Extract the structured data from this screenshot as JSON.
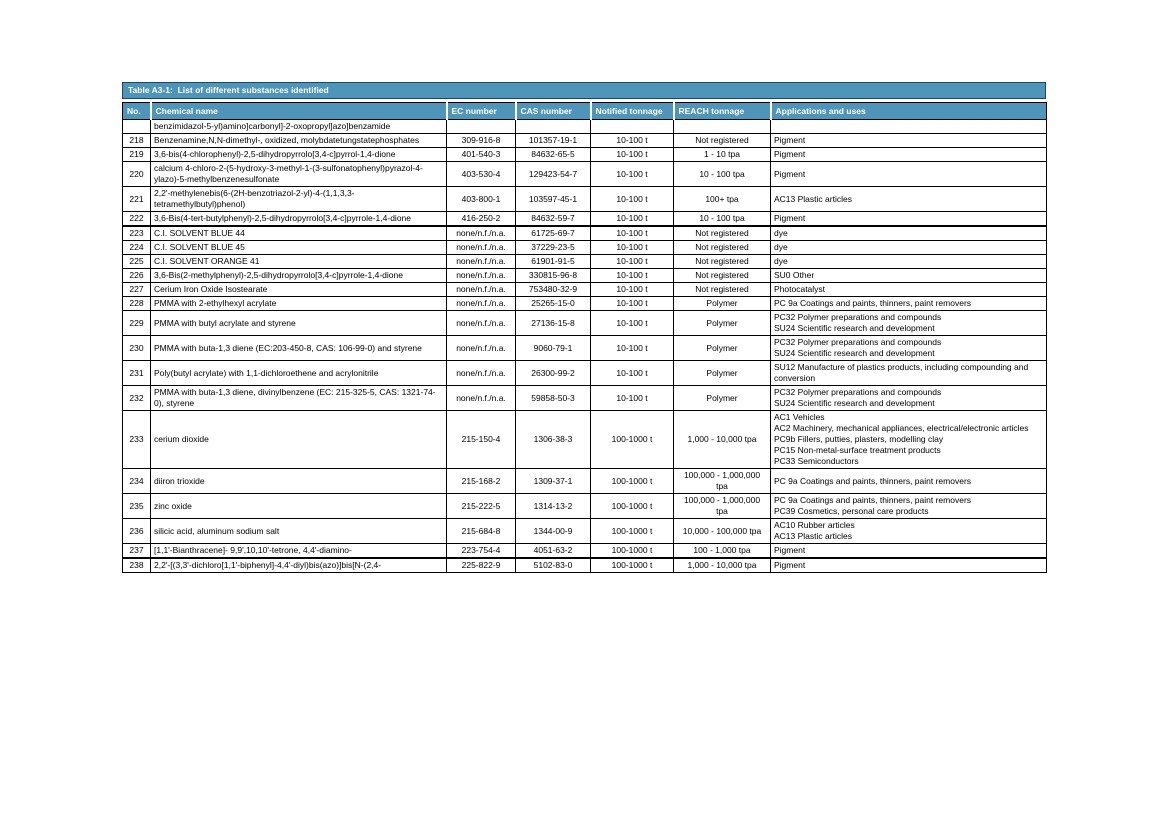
{
  "table": {
    "title": "Table A3-1:  List of different substances identified",
    "header_bg": "#4e95b9",
    "header_text_color": "#ffffff",
    "columns": [
      "No.",
      "Chemical name",
      "EC number",
      "CAS number",
      "Notified tonnage",
      "REACH tonnage",
      "Applications and uses"
    ],
    "rows": [
      {
        "no": "",
        "name": "benzimidazol-5-yl)amino]carbonyl]-2-oxopropyl]azo]benzamide",
        "ec": "",
        "cas": "",
        "notified": "",
        "reach": "",
        "apps": []
      },
      {
        "no": "218",
        "name": "Benzenamine,N,N-dimethyl-, oxidized, molybdatetungstatephosphates",
        "ec": "309-916-8",
        "cas": "101357-19-1",
        "notified": "10-100 t",
        "reach": "Not registered",
        "apps": [
          "Pigment"
        ]
      },
      {
        "no": "219",
        "name": "3,6-bis(4-chlorophenyl)-2,5-dihydropyrrolo[3,4-c]pyrrol-1,4-dione",
        "ec": "401-540-3",
        "cas": "84632-65-5",
        "notified": "10-100 t",
        "reach": "1 - 10 tpa",
        "apps": [
          "Pigment"
        ]
      },
      {
        "no": "220",
        "name": "calcium 4-chloro-2-(5-hydroxy-3-methyl-1-(3-sulfonatophenyl)pyrazol-4-ylazo)-5-methylbenzenesulfonate",
        "ec": "403-530-4",
        "cas": "129423-54-7",
        "notified": "10-100 t",
        "reach": "10 - 100 tpa",
        "apps": [
          "Pigment"
        ]
      },
      {
        "no": "221",
        "name": "2,2'-methylenebis(6-(2H-benzotriazol-2-yl)-4-(1,1,3,3-tetramethylbutyl)phenol)",
        "ec": "403-800-1",
        "cas": "103597-45-1",
        "notified": "10-100 t",
        "reach": "100+ tpa",
        "apps": [
          "AC13 Plastic articles"
        ]
      },
      {
        "no": "222",
        "name": "3,6-Bis(4-tert-butylphenyl)-2,5-dihydropyrrolo[3,4-c]pyrrole-1,4-dione",
        "ec": "416-250-2",
        "cas": "84632-59-7",
        "notified": "10-100 t",
        "reach": "10 - 100 tpa",
        "apps": [
          "Pigment"
        ]
      },
      {
        "no": "223",
        "thick_top": true,
        "name": "C.I. SOLVENT BLUE 44",
        "ec": "none/n.f./n.a.",
        "cas": "61725-69-7",
        "notified": "10-100 t",
        "reach": "Not registered",
        "apps": [
          "dye"
        ]
      },
      {
        "no": "224",
        "name": "C.I. SOLVENT BLUE 45",
        "ec": "none/n.f./n.a.",
        "cas": "37229-23-5",
        "notified": "10-100 t",
        "reach": "Not registered",
        "apps": [
          "dye"
        ]
      },
      {
        "no": "225",
        "name": "C.I. SOLVENT ORANGE 41",
        "ec": "none/n.f./n.a.",
        "cas": "61901-91-5",
        "notified": "10-100 t",
        "reach": "Not registered",
        "apps": [
          "dye"
        ]
      },
      {
        "no": "226",
        "name": "3,6-Bis(2-methylphenyl)-2,5-dihydropyrrolo[3,4-c]pyrrole-1,4-dione",
        "ec": "none/n.f./n.a.",
        "cas": "330815-96-8",
        "notified": "10-100 t",
        "reach": "Not registered",
        "apps": [
          "SU0 Other"
        ]
      },
      {
        "no": "227",
        "name": "Cerium Iron Oxide Isostearate",
        "ec": "none/n.f./n.a.",
        "cas": "753480-32-9",
        "notified": "10-100 t",
        "reach": "Not registered",
        "apps": [
          "Photocatalyst"
        ]
      },
      {
        "no": "228",
        "name": "PMMA with 2-ethylhexyl acrylate",
        "ec": "none/n.f./n.a.",
        "cas": "25265-15-0",
        "notified": "10-100 t",
        "reach": "Polymer",
        "apps": [
          "PC 9a Coatings and paints, thinners, paint removers"
        ]
      },
      {
        "no": "229",
        "name": "PMMA with butyl acrylate and styrene",
        "ec": "none/n.f./n.a.",
        "cas": "27136-15-8",
        "notified": "10-100 t",
        "reach": "Polymer",
        "apps": [
          "PC32 Polymer preparations and compounds",
          "SU24 Scientific research and development"
        ]
      },
      {
        "no": "230",
        "name": "PMMA with buta-1,3 diene (EC:203-450-8, CAS: 106-99-0) and styrene",
        "ec": "none/n.f./n.a.",
        "cas": "9060-79-1",
        "notified": "10-100 t",
        "reach": "Polymer",
        "apps": [
          "PC32 Polymer preparations and compounds",
          "SU24 Scientific research and development"
        ]
      },
      {
        "no": "231",
        "name": "Poly(butyl acrylate) with 1,1-dichloroethene and acrylonitrile",
        "ec": "none/n.f./n.a.",
        "cas": "26300-99-2",
        "notified": "10-100 t",
        "reach": "Polymer",
        "apps": [
          "SU12 Manufacture of plastics products, including compounding and conversion"
        ]
      },
      {
        "no": "232",
        "name": "PMMA with buta-1,3 diene, divinylbenzene (EC: 215-325-5, CAS: 1321-74-0), styrene",
        "ec": "none/n.f./n.a.",
        "cas": "59858-50-3",
        "notified": "10-100 t",
        "reach": "Polymer",
        "apps": [
          "PC32 Polymer preparations and compounds",
          "SU24 Scientific research and development"
        ]
      },
      {
        "no": "233",
        "name": "cerium dioxide",
        "ec": "215-150-4",
        "cas": "1306-38-3",
        "notified": "100-1000 t",
        "reach": "1,000 - 10,000 tpa",
        "apps": [
          "AC1 Vehicles",
          "AC2 Machinery, mechanical appliances, electrical/electronic articles",
          "PC9b Fillers, putties, plasters, modelling clay",
          "PC15 Non-metal-surface treatment products",
          "PC33 Semiconductors"
        ]
      },
      {
        "no": "234",
        "name": "diiron trioxide",
        "ec": "215-168-2",
        "cas": "1309-37-1",
        "notified": "100-1000 t",
        "reach": "100,000 - 1,000,000 tpa",
        "apps": [
          "PC 9a Coatings and paints, thinners, paint removers"
        ]
      },
      {
        "no": "235",
        "name": "zinc oxide",
        "ec": "215-222-5",
        "cas": "1314-13-2",
        "notified": "100-1000 t",
        "reach": "100,000 - 1,000,000 tpa",
        "apps": [
          "PC 9a Coatings and paints, thinners, paint removers",
          "PC39 Cosmetics, personal care products"
        ]
      },
      {
        "no": "236",
        "name": "silicic acid, aluminum sodium salt",
        "ec": "215-684-8",
        "cas": "1344-00-9",
        "notified": "100-1000 t",
        "reach": "10,000 - 100,000 tpa",
        "apps": [
          "AC10 Rubber articles",
          "AC13 Plastic articles"
        ]
      },
      {
        "no": "237",
        "name": "[1,1'-Bianthracene]- 9,9',10,10'-tetrone, 4,4'-diamino-",
        "ec": "223-754-4",
        "cas": "4051-63-2",
        "notified": "100-1000 t",
        "reach": "100 - 1,000 tpa",
        "apps": [
          "Pigment"
        ]
      },
      {
        "no": "238",
        "thick_top": true,
        "name": "2,2'-[(3,3'-dichloro[1,1'-biphenyl]-4,4'-diyl)bis(azo)]bis[N-(2,4-",
        "ec": "225-822-9",
        "cas": "5102-83-0",
        "notified": "100-1000 t",
        "reach": "1,000 - 10,000 tpa",
        "apps": [
          "Pigment"
        ]
      }
    ]
  }
}
